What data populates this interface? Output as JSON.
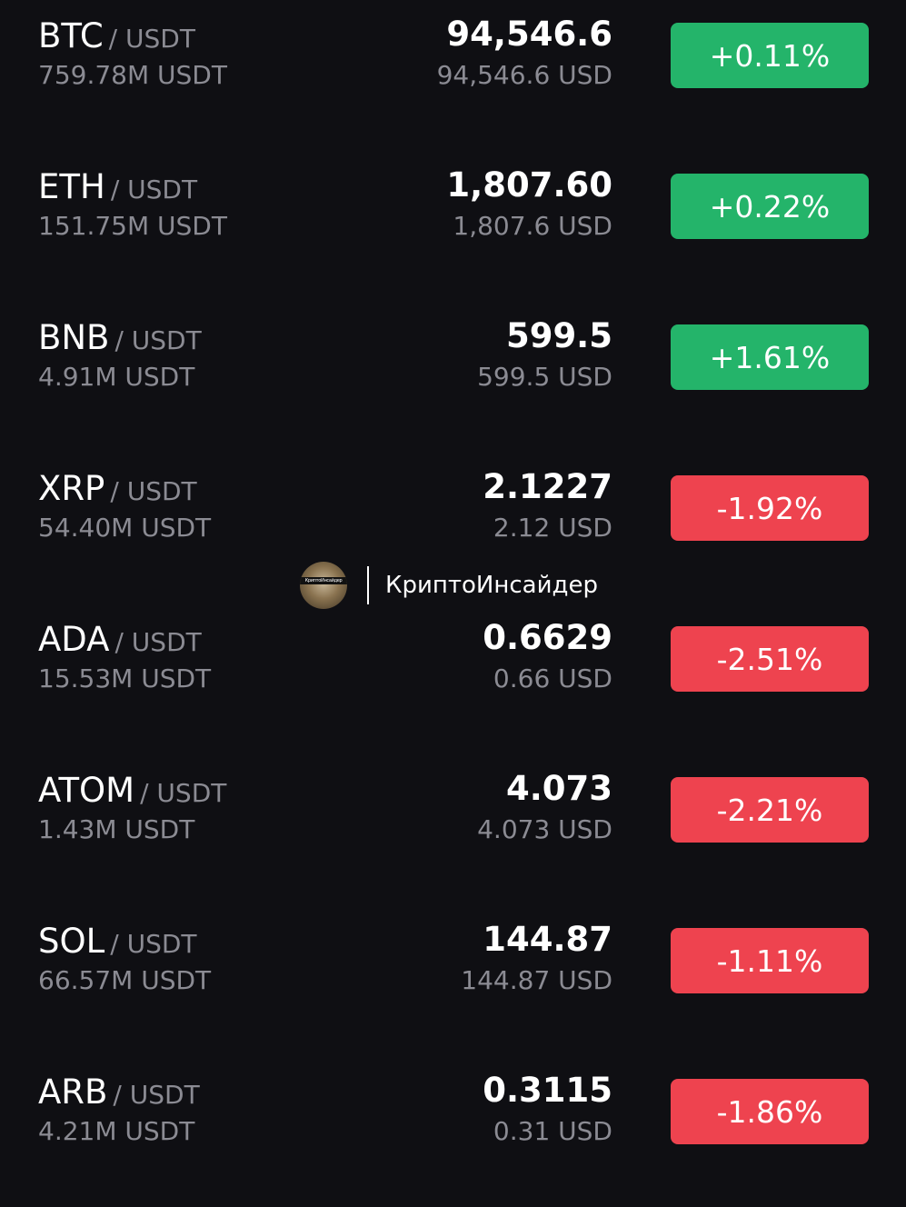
{
  "colors": {
    "background": "#0f0f13",
    "positive": "#24b46a",
    "negative": "#ee434f",
    "secondary_text": "#8b8b93"
  },
  "watermark": {
    "avatar_caption": "КриптоИнсайдер",
    "label": "КриптоИнсайдер"
  },
  "pairs": [
    {
      "base": "BTC",
      "quote": "/ USDT",
      "volume": "759.78M USDT",
      "price": "94,546.6",
      "usd": "94,546.6 USD",
      "change": "+0.11%",
      "direction": "up"
    },
    {
      "base": "ETH",
      "quote": "/ USDT",
      "volume": "151.75M USDT",
      "price": "1,807.60",
      "usd": "1,807.6 USD",
      "change": "+0.22%",
      "direction": "up"
    },
    {
      "base": "BNB",
      "quote": "/ USDT",
      "volume": "4.91M USDT",
      "price": "599.5",
      "usd": "599.5 USD",
      "change": "+1.61%",
      "direction": "up"
    },
    {
      "base": "XRP",
      "quote": "/ USDT",
      "volume": "54.40M USDT",
      "price": "2.1227",
      "usd": "2.12 USD",
      "change": "-1.92%",
      "direction": "down"
    },
    {
      "base": "ADA",
      "quote": "/ USDT",
      "volume": "15.53M USDT",
      "price": "0.6629",
      "usd": "0.66 USD",
      "change": "-2.51%",
      "direction": "down"
    },
    {
      "base": "ATOM",
      "quote": "/ USDT",
      "volume": "1.43M USDT",
      "price": "4.073",
      "usd": "4.073 USD",
      "change": "-2.21%",
      "direction": "down"
    },
    {
      "base": "SOL",
      "quote": "/ USDT",
      "volume": "66.57M USDT",
      "price": "144.87",
      "usd": "144.87 USD",
      "change": "-1.11%",
      "direction": "down"
    },
    {
      "base": "ARB",
      "quote": "/ USDT",
      "volume": "4.21M USDT",
      "price": "0.3115",
      "usd": "0.31 USD",
      "change": "-1.86%",
      "direction": "down"
    }
  ]
}
